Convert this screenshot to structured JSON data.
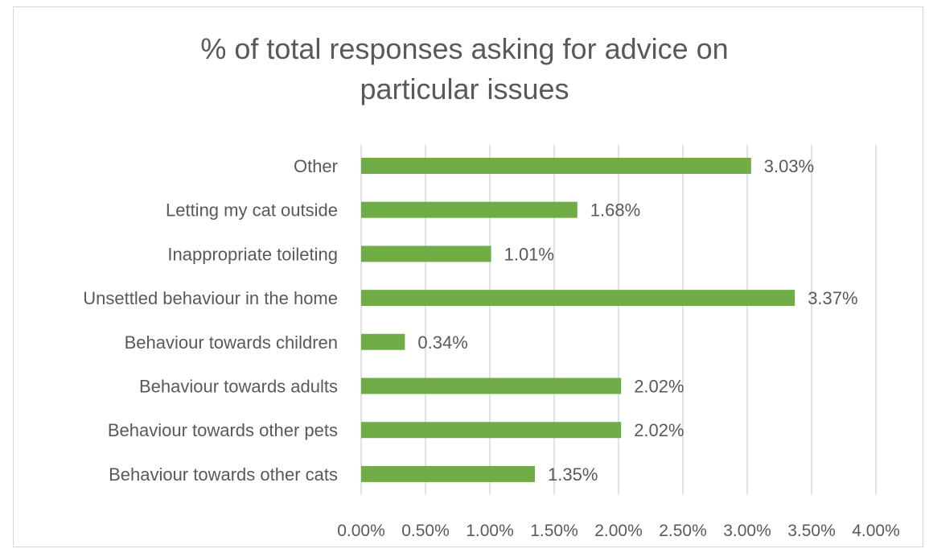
{
  "chart_data": {
    "type": "bar",
    "orientation": "horizontal",
    "title_lines": [
      "% of total responses asking for advice on",
      "particular issues"
    ],
    "categories": [
      "Other",
      "Letting my cat outside",
      "Inappropriate toileting",
      "Unsettled behaviour in the home",
      "Behaviour towards children",
      "Behaviour towards adults",
      "Behaviour towards other pets",
      "Behaviour towards other cats"
    ],
    "values": [
      3.03,
      1.68,
      1.01,
      3.37,
      0.34,
      2.02,
      2.02,
      1.35
    ],
    "data_labels": [
      "3.03%",
      "1.68%",
      "1.01%",
      "3.37%",
      "0.34%",
      "2.02%",
      "2.02%",
      "1.35%"
    ],
    "x_ticks": [
      "0.00%",
      "0.50%",
      "1.00%",
      "1.50%",
      "2.00%",
      "2.50%",
      "3.00%",
      "3.50%",
      "4.00%"
    ],
    "xlim": [
      0,
      4
    ],
    "xlabel": "",
    "ylabel": "",
    "grid": "vertical",
    "legend": "none",
    "colors": {
      "bar": "#70ad47",
      "grid": "#d9d9d9",
      "text": "#595959",
      "title": "#595959"
    }
  }
}
